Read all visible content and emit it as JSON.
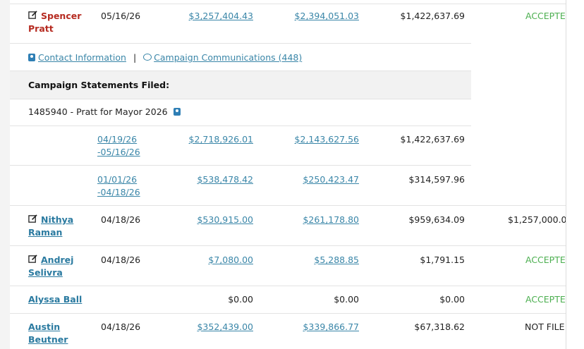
{
  "candidates": {
    "pratt": {
      "first": "Spencer",
      "last": "Pratt",
      "date": "05/16/26",
      "contributions": "$3,257,404.43",
      "expenditures": "$2,394,051.03",
      "cash": "$1,422,637.69",
      "status": "ACCEPTE"
    },
    "raman": {
      "first": "Nithya",
      "last": "Raman",
      "date": "04/18/26",
      "contributions": "$530,915.00",
      "expenditures": "$261,178.80",
      "cash": "$959,634.09",
      "extra": "$1,257,000.0"
    },
    "selivra": {
      "first": "Andrej",
      "last": "Selivra",
      "date": "04/18/26",
      "contributions": "$7,080.00",
      "expenditures": "$5,288.85",
      "cash": "$1,791.15",
      "status": "ACCEPTE"
    },
    "ball": {
      "name": "Alyssa Ball",
      "contributions": "$0.00",
      "expenditures": "$0.00",
      "cash": "$0.00",
      "status": "ACCEPTE"
    },
    "beutner": {
      "first": "Austin",
      "last": "Beutner",
      "date": "04/18/26",
      "contributions": "$352,439.00",
      "expenditures": "$339,866.77",
      "cash": "$67,318.62",
      "status": "NOT FILE"
    }
  },
  "links": {
    "contact": "Contact Information",
    "separator": "|",
    "communications": "Campaign Communications (448)"
  },
  "statements": {
    "heading": "Campaign Statements Filed:",
    "committee": "1485940 - Pratt for Mayor 2026",
    "periods": [
      {
        "from": "04/19/26",
        "to": "-05/16/26",
        "contributions": "$2,718,926.01",
        "expenditures": "$2,143,627.56",
        "cash": "$1,422,637.69"
      },
      {
        "from": "01/01/26",
        "to": "-04/18/26",
        "contributions": "$538,478.42",
        "expenditures": "$250,423.47",
        "cash": "$314,597.96"
      }
    ]
  },
  "colors": {
    "link": "#3a86a8",
    "name_red": "#b62b21",
    "accepted": "#4caf50"
  },
  "icons": [
    "edit-icon",
    "contact-card-icon",
    "chat-bubble-icon"
  ]
}
